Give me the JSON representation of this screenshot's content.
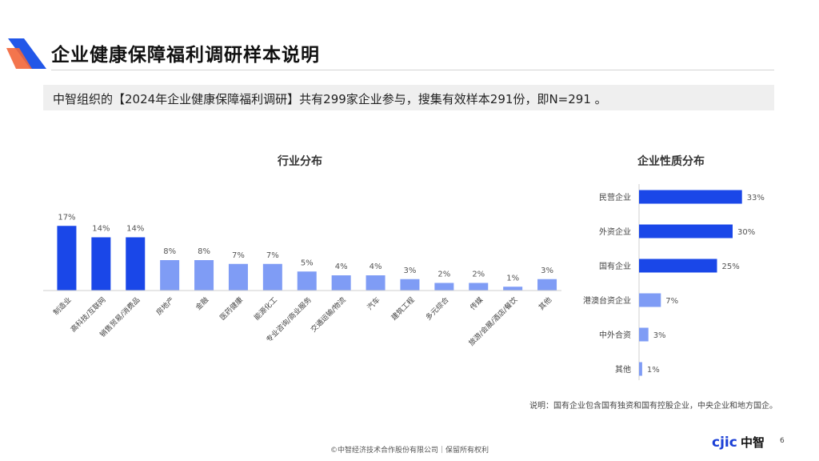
{
  "header": {
    "title": "企业健康保障福利调研样本说明"
  },
  "banner": {
    "text": "中智组织的【2024年企业健康保障福利调研】共有299家企业参与，搜集有效样本291份，即N=291 。"
  },
  "colors": {
    "dark_blue": "#1a47e8",
    "light_blue": "#7f9cf5",
    "logo_orange": "#f2663a",
    "logo_blue": "#2257e8"
  },
  "chart_data": [
    {
      "type": "bar",
      "title": "行业分布",
      "categories": [
        "制造业",
        "高科技/互联网",
        "销售贸易/消费品",
        "房地产",
        "金融",
        "医药健康",
        "能源化工",
        "专业咨询/商业服务",
        "交通运输/物流",
        "汽车",
        "建筑工程",
        "多元综合",
        "传媒",
        "旅游/会展/酒店/餐饮",
        "其他"
      ],
      "values": [
        17,
        14,
        14,
        8,
        8,
        7,
        7,
        5,
        4,
        4,
        3,
        2,
        2,
        1,
        3
      ],
      "value_labels": [
        "17%",
        "14%",
        "14%",
        "8%",
        "8%",
        "7%",
        "7%",
        "5%",
        "4%",
        "4%",
        "3%",
        "2%",
        "2%",
        "1%",
        "3%"
      ],
      "highlight_count": 3,
      "ylim": [
        0,
        20
      ]
    },
    {
      "type": "bar",
      "orientation": "horizontal",
      "title": "企业性质分布",
      "categories": [
        "民营企业",
        "外资企业",
        "国有企业",
        "港澳台资企业",
        "中外合资",
        "其他"
      ],
      "values": [
        33,
        30,
        25,
        7,
        3,
        1
      ],
      "value_labels": [
        "33%",
        "30%",
        "25%",
        "7%",
        "3%",
        "1%"
      ],
      "highlight_count": 3,
      "xlim": [
        0,
        40
      ]
    }
  ],
  "note": "说明：国有企业包含国有独资和国有控股企业，中央企业和地方国企。",
  "footer": "©中智经济技术合作股份有限公司｜保留所有权利",
  "brand": {
    "logo_text": "cjic中智"
  },
  "page_number": "6"
}
